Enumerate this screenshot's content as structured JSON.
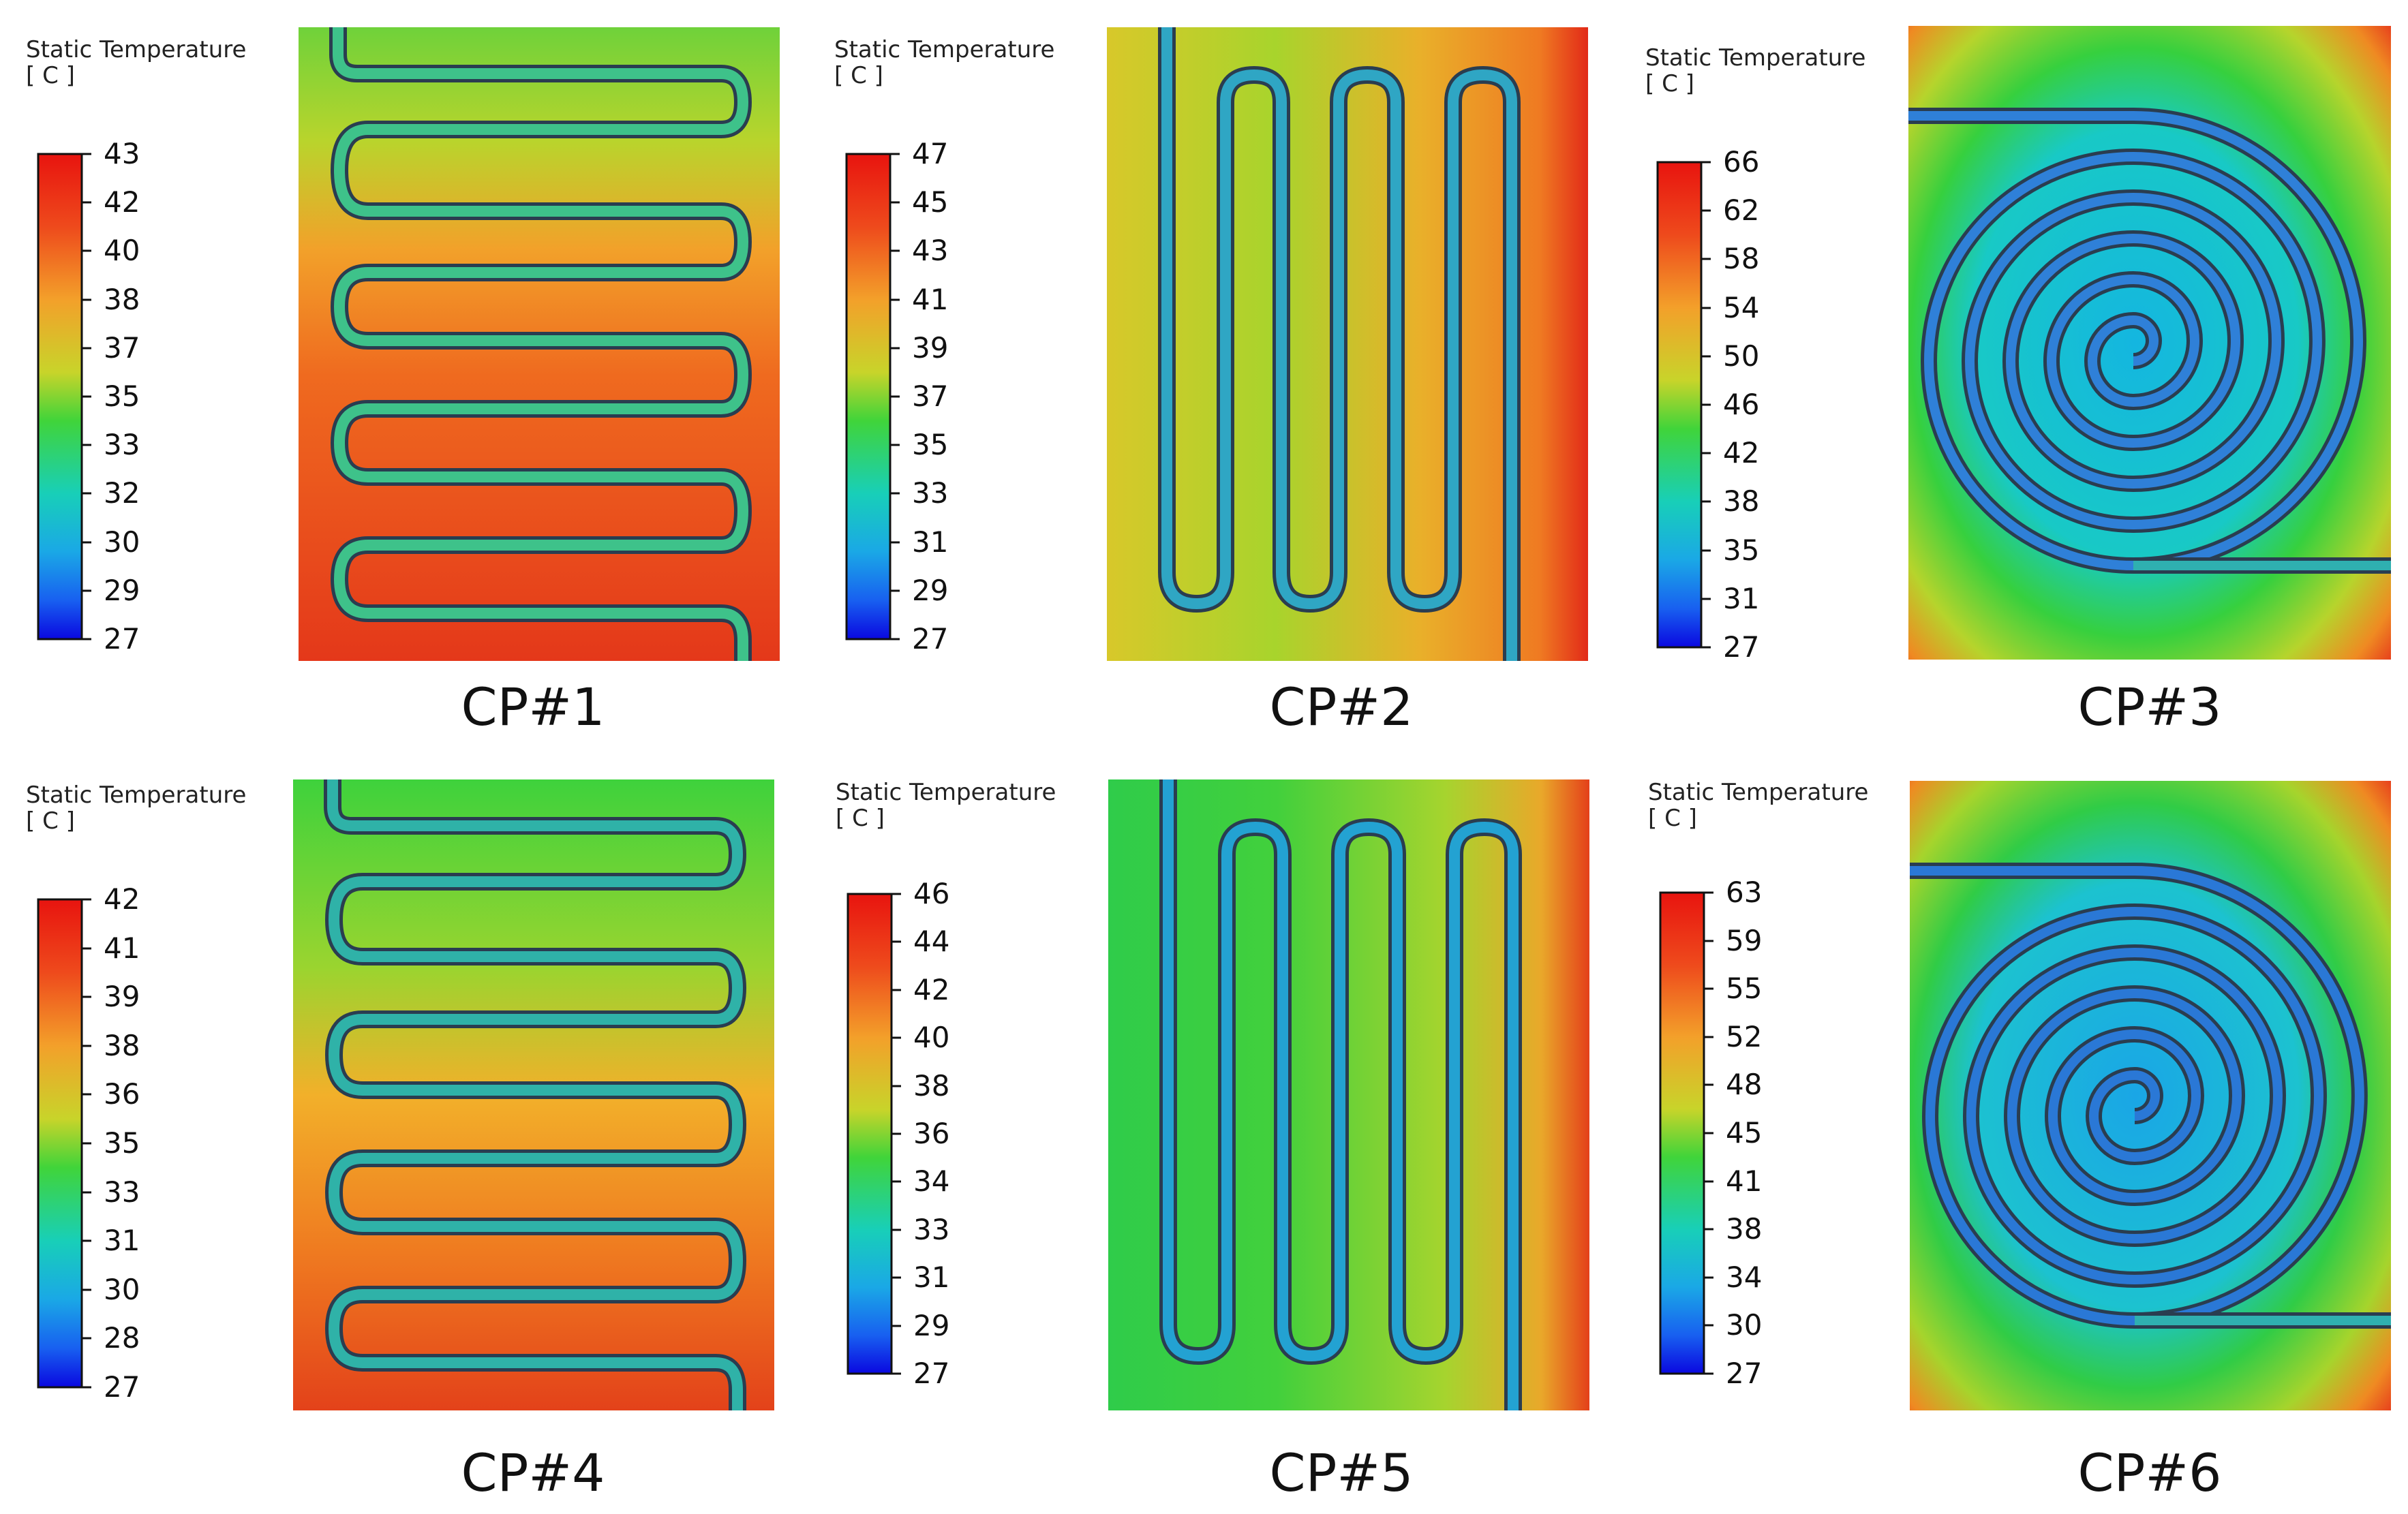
{
  "legend_title": "Static Temperature",
  "legend_unit": "[ C ]",
  "panels": [
    {
      "label": "CP#1",
      "pattern": "serpentine-horizontal",
      "ticks": [
        "43",
        "42",
        "40",
        "38",
        "37",
        "35",
        "33",
        "32",
        "30",
        "29",
        "27"
      ]
    },
    {
      "label": "CP#2",
      "pattern": "serpentine-vertical",
      "ticks": [
        "47",
        "45",
        "43",
        "41",
        "39",
        "37",
        "35",
        "33",
        "31",
        "29",
        "27"
      ]
    },
    {
      "label": "CP#3",
      "pattern": "spiral",
      "ticks": [
        "66",
        "62",
        "58",
        "54",
        "50",
        "46",
        "42",
        "38",
        "35",
        "31",
        "27"
      ]
    },
    {
      "label": "CP#4",
      "pattern": "serpentine-horizontal",
      "ticks": [
        "42",
        "41",
        "39",
        "38",
        "36",
        "35",
        "33",
        "31",
        "30",
        "28",
        "27"
      ]
    },
    {
      "label": "CP#5",
      "pattern": "serpentine-vertical",
      "ticks": [
        "46",
        "44",
        "42",
        "40",
        "38",
        "36",
        "34",
        "33",
        "31",
        "29",
        "27"
      ]
    },
    {
      "label": "CP#6",
      "pattern": "spiral",
      "ticks": [
        "63",
        "59",
        "55",
        "52",
        "48",
        "45",
        "41",
        "38",
        "34",
        "30",
        "27"
      ]
    }
  ],
  "colors": {
    "red": "#e0201a",
    "orange": "#ef6a1c",
    "amber": "#f3a42a",
    "yellow": "#c8d62a",
    "green": "#34cc3a",
    "cyan": "#16c9c0",
    "lightblue": "#1c9be0",
    "blue": "#1040f0",
    "darkblue": "#0a10e6",
    "channel": "#2f6fd6",
    "channel_edge": "#2a3d50"
  }
}
